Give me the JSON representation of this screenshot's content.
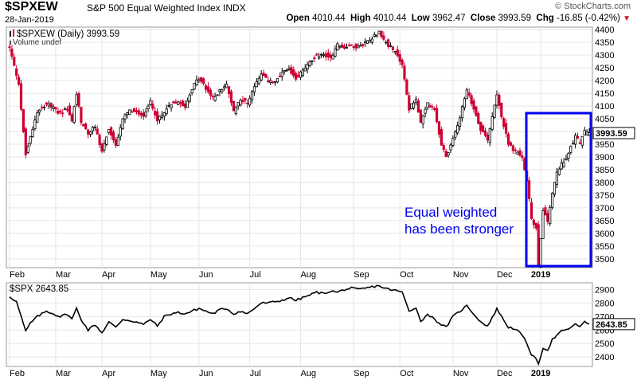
{
  "header": {
    "symbol": "$SPXEW",
    "name": "S&P 500 Equal Weighted Index",
    "exchange": "INDX",
    "date": "28-Jan-2019",
    "brand": "© StockCharts.com",
    "open_label": "Open",
    "open": "4010.44",
    "high_label": "High",
    "high": "4010.44",
    "low_label": "Low",
    "low": "3962.47",
    "close_label": "Close",
    "close": "3993.59",
    "chg_label": "Chg",
    "chg": "-16.85 (-0.42%)",
    "down_icon": "▼"
  },
  "colors": {
    "up": "#000000",
    "down": "#cc0033",
    "box": "#0000ee",
    "annotation": "#0000ee",
    "grid": "#e6e6e6"
  },
  "chart_data": [
    {
      "type": "candlestick",
      "legend": "$SPXEW (Daily) 3993.59",
      "legend_icon": "candlestick-icon",
      "volume_note": "Volume undef",
      "y_ticks": [
        3500,
        3550,
        3600,
        3650,
        3700,
        3750,
        3800,
        3850,
        3900,
        3950,
        4000,
        4050,
        4100,
        4150,
        4200,
        4250,
        4300,
        4350,
        4400
      ],
      "ylim": [
        3465,
        4410
      ],
      "last_value": "3993.59",
      "x_labels": [
        "Feb",
        "Mar",
        "Apr",
        "May",
        "Jun",
        "Jul",
        "Aug",
        "Sep",
        "Oct",
        "Nov",
        "Dec",
        "2019"
      ],
      "x_label_days": [
        0,
        20,
        40,
        61,
        82,
        104,
        126,
        149,
        169,
        192,
        211,
        230
      ],
      "total_days": 251,
      "closes": [
        [
          0,
          4330
        ],
        [
          4,
          4180
        ],
        [
          7,
          3910
        ],
        [
          9,
          3980
        ],
        [
          12,
          4080
        ],
        [
          16,
          4110
        ],
        [
          19,
          4090
        ],
        [
          22,
          4070
        ],
        [
          25,
          4090
        ],
        [
          27,
          4040
        ],
        [
          29,
          4150
        ],
        [
          31,
          4040
        ],
        [
          34,
          3990
        ],
        [
          37,
          4020
        ],
        [
          40,
          3920
        ],
        [
          43,
          4010
        ],
        [
          46,
          3940
        ],
        [
          49,
          4050
        ],
        [
          52,
          4080
        ],
        [
          55,
          4080
        ],
        [
          58,
          4060
        ],
        [
          61,
          4120
        ],
        [
          64,
          4040
        ],
        [
          67,
          4080
        ],
        [
          70,
          4110
        ],
        [
          73,
          4120
        ],
        [
          76,
          4100
        ],
        [
          79,
          4170
        ],
        [
          82,
          4210
        ],
        [
          85,
          4170
        ],
        [
          88,
          4130
        ],
        [
          91,
          4160
        ],
        [
          94,
          4180
        ],
        [
          97,
          4080
        ],
        [
          100,
          4130
        ],
        [
          103,
          4110
        ],
        [
          106,
          4180
        ],
        [
          109,
          4220
        ],
        [
          112,
          4200
        ],
        [
          115,
          4190
        ],
        [
          118,
          4230
        ],
        [
          121,
          4240
        ],
        [
          124,
          4210
        ],
        [
          127,
          4240
        ],
        [
          130,
          4270
        ],
        [
          133,
          4300
        ],
        [
          136,
          4300
        ],
        [
          139,
          4290
        ],
        [
          142,
          4340
        ],
        [
          145,
          4330
        ],
        [
          148,
          4340
        ],
        [
          151,
          4330
        ],
        [
          154,
          4350
        ],
        [
          157,
          4370
        ],
        [
          160,
          4390
        ],
        [
          162,
          4360
        ],
        [
          165,
          4330
        ],
        [
          168,
          4300
        ],
        [
          170,
          4260
        ],
        [
          173,
          4090
        ],
        [
          176,
          4130
        ],
        [
          178,
          4030
        ],
        [
          181,
          4110
        ],
        [
          184,
          4080
        ],
        [
          187,
          3950
        ],
        [
          189,
          3900
        ],
        [
          192,
          3970
        ],
        [
          195,
          4060
        ],
        [
          198,
          4160
        ],
        [
          201,
          4090
        ],
        [
          204,
          4010
        ],
        [
          207,
          3970
        ],
        [
          209,
          4060
        ],
        [
          211,
          4150
        ],
        [
          213,
          4060
        ],
        [
          216,
          3950
        ],
        [
          219,
          3920
        ],
        [
          222,
          3900
        ],
        [
          224,
          3800
        ],
        [
          226,
          3660
        ],
        [
          228,
          3620
        ],
        [
          229,
          3480
        ],
        [
          231,
          3690
        ],
        [
          233,
          3650
        ],
        [
          235,
          3760
        ],
        [
          237,
          3840
        ],
        [
          239,
          3870
        ],
        [
          241,
          3890
        ],
        [
          243,
          3940
        ],
        [
          245,
          3980
        ],
        [
          247,
          3960
        ],
        [
          249,
          4000
        ],
        [
          250,
          3993.59
        ]
      ]
    },
    {
      "type": "line",
      "legend": "$SPX 2643.85",
      "y_ticks": [
        2400,
        2500,
        2600,
        2700,
        2800,
        2900
      ],
      "ylim": [
        2330,
        2950
      ],
      "last_value": "2643.85",
      "x_labels": [
        "Feb",
        "Mar",
        "Apr",
        "May",
        "Jun",
        "Jul",
        "Aug",
        "Sep",
        "Oct",
        "Nov",
        "Dec",
        "2019"
      ],
      "closes": [
        [
          0,
          2850
        ],
        [
          3,
          2810
        ],
        [
          7,
          2590
        ],
        [
          9,
          2650
        ],
        [
          12,
          2700
        ],
        [
          16,
          2740
        ],
        [
          19,
          2720
        ],
        [
          22,
          2700
        ],
        [
          25,
          2720
        ],
        [
          27,
          2680
        ],
        [
          29,
          2760
        ],
        [
          31,
          2680
        ],
        [
          34,
          2600
        ],
        [
          37,
          2640
        ],
        [
          40,
          2580
        ],
        [
          43,
          2660
        ],
        [
          46,
          2620
        ],
        [
          49,
          2680
        ],
        [
          52,
          2670
        ],
        [
          55,
          2660
        ],
        [
          58,
          2640
        ],
        [
          61,
          2680
        ],
        [
          64,
          2630
        ],
        [
          67,
          2700
        ],
        [
          70,
          2720
        ],
        [
          73,
          2730
        ],
        [
          76,
          2720
        ],
        [
          79,
          2740
        ],
        [
          82,
          2760
        ],
        [
          85,
          2740
        ],
        [
          88,
          2720
        ],
        [
          91,
          2750
        ],
        [
          94,
          2760
        ],
        [
          97,
          2720
        ],
        [
          100,
          2740
        ],
        [
          103,
          2720
        ],
        [
          106,
          2760
        ],
        [
          109,
          2800
        ],
        [
          112,
          2800
        ],
        [
          115,
          2810
        ],
        [
          118,
          2820
        ],
        [
          121,
          2840
        ],
        [
          124,
          2820
        ],
        [
          127,
          2840
        ],
        [
          130,
          2860
        ],
        [
          133,
          2880
        ],
        [
          136,
          2870
        ],
        [
          139,
          2890
        ],
        [
          142,
          2880
        ],
        [
          145,
          2900
        ],
        [
          148,
          2910
        ],
        [
          151,
          2900
        ],
        [
          154,
          2910
        ],
        [
          157,
          2920
        ],
        [
          160,
          2930
        ],
        [
          162,
          2910
        ],
        [
          165,
          2900
        ],
        [
          168,
          2890
        ],
        [
          170,
          2880
        ],
        [
          173,
          2740
        ],
        [
          176,
          2770
        ],
        [
          178,
          2660
        ],
        [
          181,
          2720
        ],
        [
          184,
          2680
        ],
        [
          187,
          2640
        ],
        [
          189,
          2620
        ],
        [
          192,
          2700
        ],
        [
          195,
          2740
        ],
        [
          198,
          2780
        ],
        [
          201,
          2720
        ],
        [
          204,
          2660
        ],
        [
          207,
          2630
        ],
        [
          209,
          2690
        ],
        [
          211,
          2760
        ],
        [
          213,
          2700
        ],
        [
          216,
          2620
        ],
        [
          219,
          2610
        ],
        [
          222,
          2560
        ],
        [
          224,
          2500
        ],
        [
          226,
          2420
        ],
        [
          228,
          2380
        ],
        [
          229,
          2350
        ],
        [
          231,
          2470
        ],
        [
          233,
          2450
        ],
        [
          235,
          2530
        ],
        [
          237,
          2560
        ],
        [
          239,
          2590
        ],
        [
          241,
          2600
        ],
        [
          243,
          2620
        ],
        [
          245,
          2640
        ],
        [
          247,
          2630
        ],
        [
          249,
          2660
        ],
        [
          250,
          2643.85
        ]
      ]
    }
  ],
  "annotation": {
    "line1": "Equal weighted",
    "line2": "has been stronger"
  }
}
